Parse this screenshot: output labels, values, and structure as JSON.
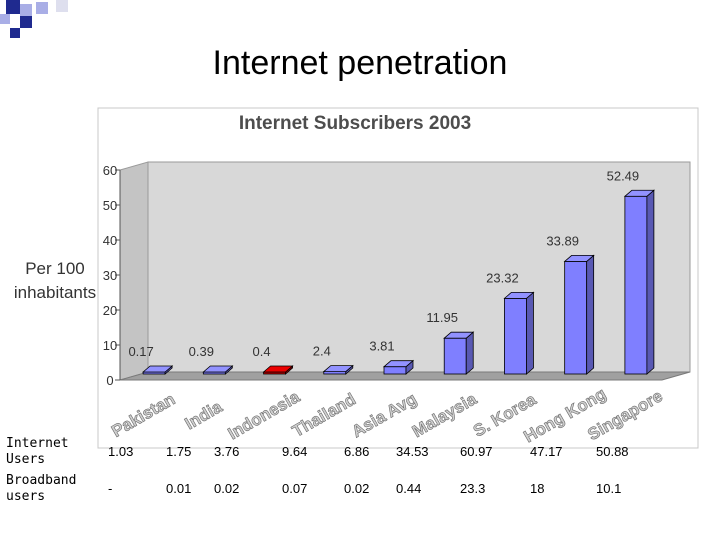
{
  "slide": {
    "title": "Internet penetration"
  },
  "chart_data": {
    "type": "bar",
    "title": "Internet Subscribers 2003",
    "xlabel": "",
    "ylabel": "Per 100 inhabitants",
    "ylim": [
      0,
      60
    ],
    "yticks": [
      0,
      10,
      20,
      30,
      40,
      50,
      60
    ],
    "categories": [
      "Pakistan",
      "India",
      "Indonesia",
      "Thailand",
      "Asia Avg",
      "Malaysia",
      "S. Korea",
      "Hong Kong",
      "Singapore"
    ],
    "values": [
      0.17,
      0.39,
      0.4,
      2.4,
      3.81,
      11.95,
      23.32,
      33.89,
      52.49
    ],
    "value_labels": [
      "0.17",
      "0.39",
      "0.4",
      "2.4",
      "3.81",
      "11.95",
      "23.32",
      "33.89",
      "52.49"
    ],
    "bar_color": "#7f7fff",
    "highlight_index": 2,
    "highlight_color": "#cc0000",
    "grid": false,
    "legend": "none"
  },
  "table": {
    "rows": [
      {
        "label": "Internet Users",
        "values": [
          "1.03",
          "1.75",
          "3.76",
          "9.64",
          "6.86",
          "34.53",
          "60.97",
          "47.17",
          "50.88"
        ]
      },
      {
        "label": "Broadband users",
        "values": [
          "-",
          "0.01",
          "0.02",
          "0.07",
          "0.02",
          "0.44",
          "23.3",
          "18",
          "10.1"
        ]
      }
    ]
  },
  "colors": {
    "deco_dark": "#1f2a8f",
    "deco_light": "#a9aee6",
    "wall": "#d8d8d8",
    "floor": "#a0a0a0"
  }
}
